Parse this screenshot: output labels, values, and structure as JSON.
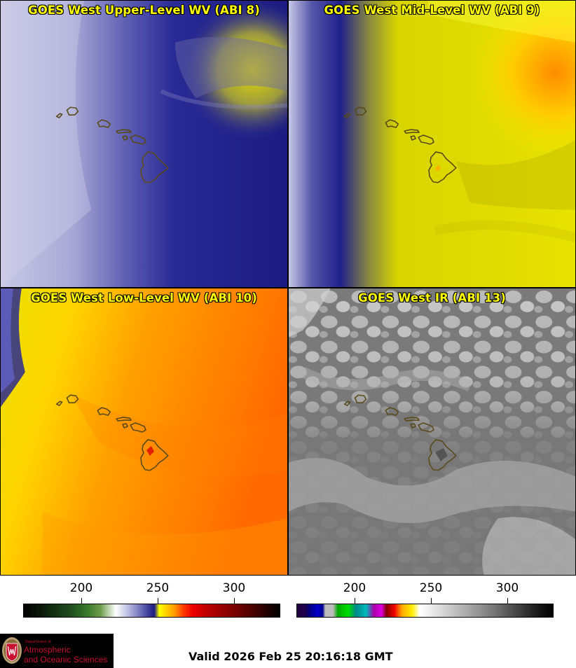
{
  "panels": [
    {
      "id": "upper",
      "title": "GOES West Upper-Level WV (ABI 8)"
    },
    {
      "id": "mid",
      "title": "GOES West Mid-Level WV (ABI 9)"
    },
    {
      "id": "low",
      "title": "GOES West Low-Level WV (ABI 10)"
    },
    {
      "id": "ir",
      "title": "GOES West IR (ABI 13)"
    }
  ],
  "colorbars": {
    "left": {
      "ticks": [
        "200",
        "250",
        "300"
      ]
    },
    "right": {
      "ticks": [
        "200",
        "250",
        "300"
      ]
    }
  },
  "logo": {
    "dept": "Department of",
    "line1": "Atmospheric",
    "line2": "and Oceanic Sciences"
  },
  "valid_time": "Valid 2026 Feb 25 20:16:18 GMT"
}
